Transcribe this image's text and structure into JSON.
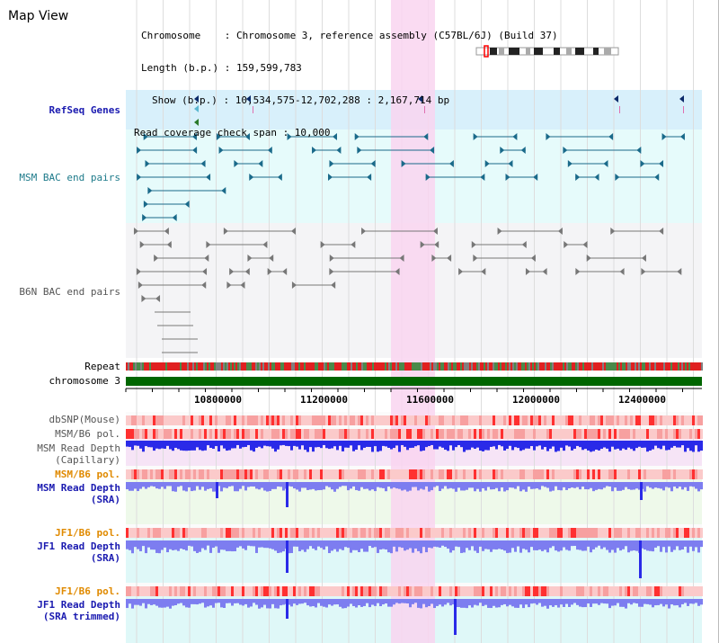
{
  "view": {
    "title": "Map View",
    "info_lines": [
      "Chromosome    : Chromosome 3, reference assembly (C57BL/6J) (Build 37)",
      "Length (b.p.) : 159,599,783",
      "Show (b.p.) : 10,534,575-12,702,288 : 2,167,714 bp",
      "Read coverage check span : 10,000"
    ]
  },
  "tracks": {
    "refseq": "RefSeq Genes",
    "msm_bac": "MSM BAC end pairs",
    "b6n_bac": "B6N BAC end pairs",
    "repeat": "Repeat",
    "chromosome": "chromosome 3",
    "dbsnp": "dbSNP(Mouse)",
    "msm_pol_1": "MSM/B6 pol.",
    "msm_depth_cap_1": "MSM Read Depth",
    "msm_depth_cap_2": "(Capillary)",
    "msm_pol_2": "MSM/B6 pol.",
    "msm_depth_sra_1": "MSM Read Depth",
    "msm_depth_sra_2": "(SRA)",
    "jf1_pol_1": "JF1/B6 pol.",
    "jf1_depth_sra_1": "JF1 Read Depth",
    "jf1_depth_sra_2": "(SRA)",
    "jf1_pol_2": "JF1/B6 pol.",
    "jf1_depth_trim_1": "JF1 Read Depth",
    "jf1_depth_trim_2": "(SRA trimmed)"
  },
  "axis": {
    "ticks": [
      "10800000",
      "11200000",
      "11600000",
      "12000000",
      "12400000"
    ]
  },
  "colors": {
    "refseq_bg": "#d8f0fb",
    "bac_bg": "#e6fbfb",
    "b6n_bg": "#f4f4f6",
    "highlight": "#f9d5f0",
    "chrom": "#006600",
    "depth_blue": "#2a2ae8",
    "depth_light": "#7d7df0"
  }
}
